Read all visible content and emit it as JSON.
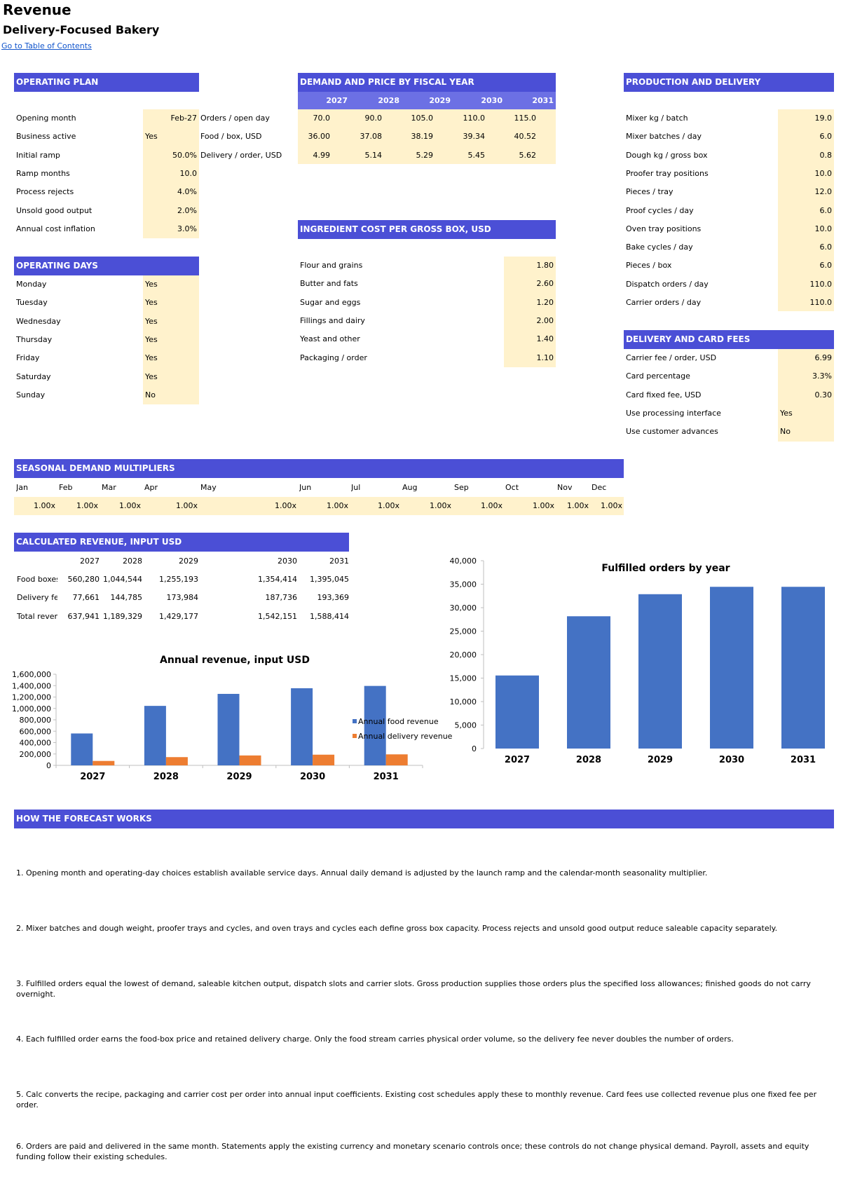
{
  "page": {
    "title": "Revenue",
    "subtitle": "Delivery-Focused Bakery",
    "toc_link": "Go to Table of Contents"
  },
  "operating_plan": {
    "header": "OPERATING PLAN",
    "rows": [
      {
        "label": "Opening month",
        "value": "Feb-27"
      },
      {
        "label": "Business active",
        "value": "Yes"
      },
      {
        "label": "Initial ramp",
        "value": "50.0%"
      },
      {
        "label": "Ramp months",
        "value": "10.0"
      },
      {
        "label": "Process rejects",
        "value": "4.0%"
      },
      {
        "label": "Unsold good output",
        "value": "2.0%"
      },
      {
        "label": "Annual cost inflation",
        "value": "3.0%"
      }
    ]
  },
  "operating_days": {
    "header": "OPERATING DAYS",
    "rows": [
      {
        "label": "Monday",
        "value": "Yes"
      },
      {
        "label": "Tuesday",
        "value": "Yes"
      },
      {
        "label": "Wednesday",
        "value": "Yes"
      },
      {
        "label": "Thursday",
        "value": "Yes"
      },
      {
        "label": "Friday",
        "value": "Yes"
      },
      {
        "label": "Saturday",
        "value": "Yes"
      },
      {
        "label": "Sunday",
        "value": "No"
      }
    ]
  },
  "demand_price": {
    "header": "DEMAND AND PRICE BY FISCAL YEAR",
    "years": [
      "2027",
      "2028",
      "2029",
      "2030",
      "2031"
    ],
    "rows": [
      {
        "label": "Orders / open day",
        "values": [
          "70.0",
          "90.0",
          "105.0",
          "110.0",
          "115.0"
        ]
      },
      {
        "label": "Food / box, USD",
        "values": [
          "36.00",
          "37.08",
          "38.19",
          "39.34",
          "40.52"
        ]
      },
      {
        "label": "Delivery / order, USD",
        "values": [
          "4.99",
          "5.14",
          "5.29",
          "5.45",
          "5.62"
        ]
      }
    ]
  },
  "ingredient_cost": {
    "header": "INGREDIENT COST PER GROSS BOX, USD",
    "rows": [
      {
        "label": "Flour and grains",
        "value": "1.80"
      },
      {
        "label": "Butter and fats",
        "value": "2.60"
      },
      {
        "label": "Sugar and eggs",
        "value": "1.20"
      },
      {
        "label": "Fillings and dairy",
        "value": "2.00"
      },
      {
        "label": "Yeast and other",
        "value": "1.40"
      },
      {
        "label": "Packaging / order",
        "value": "1.10"
      }
    ]
  },
  "production_delivery": {
    "header": "PRODUCTION AND DELIVERY",
    "rows": [
      {
        "label": "Mixer kg / batch",
        "value": "19.0"
      },
      {
        "label": "Mixer batches / day",
        "value": "6.0"
      },
      {
        "label": "Dough kg / gross box",
        "value": "0.8"
      },
      {
        "label": "Proofer tray positions",
        "value": "10.0"
      },
      {
        "label": "Pieces / tray",
        "value": "12.0"
      },
      {
        "label": "Proof cycles / day",
        "value": "6.0"
      },
      {
        "label": "Oven tray positions",
        "value": "10.0"
      },
      {
        "label": "Bake cycles / day",
        "value": "6.0"
      },
      {
        "label": "Pieces / box",
        "value": "6.0"
      },
      {
        "label": "Dispatch orders / day",
        "value": "110.0"
      },
      {
        "label": "Carrier orders / day",
        "value": "110.0"
      }
    ]
  },
  "delivery_fees": {
    "header": "DELIVERY AND CARD FEES",
    "rows": [
      {
        "label": "Carrier fee / order, USD",
        "value": "6.99"
      },
      {
        "label": "Card percentage",
        "value": "3.3%"
      },
      {
        "label": "Card fixed fee, USD",
        "value": "0.30"
      },
      {
        "label": "Use processing interface",
        "value": "Yes"
      },
      {
        "label": "Use customer advances",
        "value": "No"
      }
    ]
  },
  "seasonal": {
    "header": "SEASONAL DEMAND MULTIPLIERS",
    "months": [
      "Jan",
      "Feb",
      "Mar",
      "Apr",
      "May",
      "Jun",
      "Jul",
      "Aug",
      "Sep",
      "Oct",
      "Nov",
      "Dec"
    ],
    "values": [
      "1.00x",
      "1.00x",
      "1.00x",
      "1.00x",
      "1.00x",
      "1.00x",
      "1.00x",
      "1.00x",
      "1.00x",
      "1.00x",
      "1.00x",
      "1.00x"
    ]
  },
  "calculated_revenue": {
    "header": "CALCULATED REVENUE, INPUT USD",
    "years": [
      "2027",
      "2028",
      "2029",
      "2030",
      "2031"
    ],
    "rows": [
      {
        "label": "Food boxes",
        "values": [
          "560,280",
          "1,044,544",
          "1,255,193",
          "1,354,414",
          "1,395,045"
        ]
      },
      {
        "label": "Delivery fee",
        "values": [
          "77,661",
          "144,785",
          "173,984",
          "187,736",
          "193,369"
        ]
      },
      {
        "label": "Total revenu",
        "values": [
          "637,941",
          "1,189,329",
          "1,429,177",
          "1,542,151",
          "1,588,414"
        ]
      }
    ]
  },
  "chart_data": [
    {
      "type": "bar",
      "title": "Annual revenue, input USD",
      "categories": [
        "2027",
        "2028",
        "2029",
        "2030",
        "2031"
      ],
      "series": [
        {
          "name": "Annual food revenue",
          "values": [
            560280,
            1044544,
            1255193,
            1354414,
            1395045
          ],
          "color": "#4472c4"
        },
        {
          "name": "Annual delivery revenue",
          "values": [
            77661,
            144785,
            173984,
            187736,
            193369
          ],
          "color": "#ed7d31"
        }
      ],
      "ylim": [
        0,
        1600000
      ],
      "yticks": [
        0,
        200000,
        400000,
        600000,
        800000,
        1000000,
        1200000,
        1400000,
        1600000
      ],
      "ytick_labels": [
        "0",
        "200,000",
        "400,000",
        "600,000",
        "800,000",
        "1,000,000",
        "1,200,000",
        "1,400,000",
        "1,600,000"
      ],
      "legend": "right",
      "grid": false
    },
    {
      "type": "bar",
      "title": "Fulfilled orders by year",
      "categories": [
        "2027",
        "2028",
        "2029",
        "2030",
        "2031"
      ],
      "series": [
        {
          "values": [
            15560,
            28170,
            32870,
            34440,
            34440
          ],
          "color": "#4472c4"
        }
      ],
      "ylim": [
        0,
        40000
      ],
      "yticks": [
        0,
        5000,
        10000,
        15000,
        20000,
        25000,
        30000,
        35000,
        40000
      ],
      "ytick_labels": [
        "0",
        "5,000",
        "10,000",
        "15,000",
        "20,000",
        "25,000",
        "30,000",
        "35,000",
        "40,000"
      ],
      "legend": "none",
      "grid": false
    }
  ],
  "how_it_works": {
    "header": "HOW THE FORECAST WORKS",
    "notes": [
      "1. Opening month and operating-day choices establish available service days. Annual daily demand is adjusted by the launch ramp and the calendar-month seasonality multiplier.",
      "2. Mixer batches and dough weight, proofer trays and cycles, and oven trays and cycles each define gross box capacity. Process rejects and unsold good output reduce saleable capacity separately.",
      "3. Fulfilled orders equal the lowest of demand, saleable kitchen output, dispatch slots and carrier slots. Gross production supplies those orders plus the specified loss allowances; finished goods do not carry overnight.",
      "4. Each fulfilled order earns the food-box price and retained delivery charge. Only the food stream carries physical order volume, so the delivery fee never doubles the number of orders.",
      "5. Calc converts the recipe, packaging and carrier cost per order into annual input coefficients. Existing cost schedules apply these to monthly revenue. Card fees use collected revenue plus one fixed fee per order.",
      "6. Orders are paid and delivered in the same month. Statements apply the existing currency and monetary scenario controls once; these controls do not change physical demand. Payroll, assets and equity funding follow their existing schedules."
    ]
  }
}
